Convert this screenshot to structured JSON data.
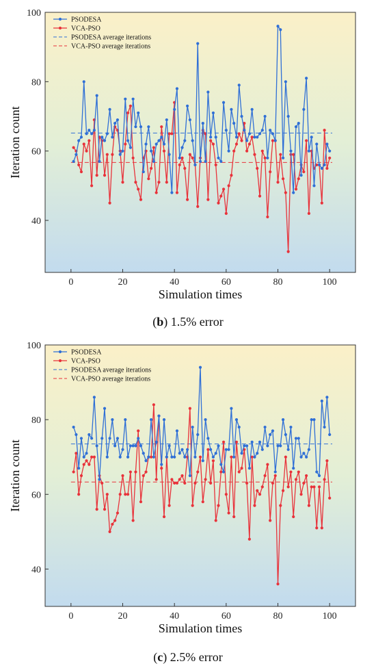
{
  "colors": {
    "psodesa": "#2f6fd6",
    "vca": "#e8323a"
  },
  "chart_data": [
    {
      "type": "line",
      "caption_letter": "b",
      "caption_text": "1.5% error",
      "xlabel": "Simulation times",
      "ylabel": "Iteration count",
      "xlim": [
        -10,
        110
      ],
      "ylim": [
        25,
        100
      ],
      "xticks": [
        0,
        20,
        40,
        60,
        80,
        100
      ],
      "yticks": [
        40,
        60,
        80,
        100
      ],
      "x_tick_labels": [
        "0",
        "20",
        "40",
        "60",
        "80",
        "100"
      ],
      "y_tick_labels": [
        "40",
        "60",
        "80",
        "100"
      ],
      "legend_position": "top-left",
      "series": [
        {
          "name": "PSODESA",
          "style": "solid-marker",
          "color": "#2f6fd6",
          "values": [
            57,
            59,
            63,
            64,
            80,
            65,
            66,
            65,
            66,
            76,
            57,
            64,
            63,
            65,
            72,
            64,
            68,
            69,
            59,
            60,
            75,
            63,
            61,
            75,
            67,
            71,
            67,
            54,
            62,
            67,
            60,
            57,
            62,
            63,
            64,
            62,
            69,
            59,
            48,
            72,
            78,
            58,
            61,
            63,
            73,
            69,
            63,
            56,
            91,
            57,
            68,
            57,
            77,
            64,
            71,
            64,
            58,
            57,
            74,
            66,
            60,
            72,
            68,
            64,
            79,
            70,
            66,
            63,
            65,
            72,
            64,
            64,
            65,
            66,
            70,
            58,
            66,
            65,
            63,
            96,
            95,
            58,
            80,
            70,
            60,
            48,
            67,
            68,
            53,
            72,
            81,
            60,
            64,
            50,
            62,
            56,
            55,
            56,
            62,
            60
          ]
        },
        {
          "name": "VCA-PSO",
          "style": "solid-marker",
          "color": "#e8323a",
          "values": [
            61,
            60,
            56,
            54,
            62,
            60,
            63,
            50,
            69,
            53,
            64,
            63,
            53,
            59,
            45,
            59,
            67,
            66,
            60,
            51,
            62,
            71,
            73,
            58,
            51,
            49,
            46,
            58,
            60,
            52,
            55,
            61,
            48,
            51,
            67,
            60,
            51,
            65,
            65,
            74,
            48,
            56,
            58,
            55,
            46,
            59,
            58,
            56,
            44,
            58,
            66,
            65,
            46,
            63,
            62,
            56,
            45,
            47,
            49,
            42,
            50,
            53,
            60,
            62,
            65,
            63,
            68,
            60,
            62,
            64,
            59,
            55,
            47,
            60,
            58,
            41,
            54,
            63,
            63,
            51,
            59,
            52,
            48,
            31,
            59,
            59,
            49,
            52,
            56,
            54,
            63,
            42,
            60,
            55,
            56,
            56,
            45,
            66,
            55,
            58
          ]
        },
        {
          "name": "PSODESA average iterations",
          "style": "dashed",
          "color": "#2f6fd6",
          "values": [
            65.2
          ]
        },
        {
          "name": "VCA-PSO average iterations",
          "style": "dashed",
          "color": "#e8323a",
          "values": [
            56.7
          ]
        }
      ]
    },
    {
      "type": "line",
      "caption_letter": "c",
      "caption_text": "2.5% error",
      "xlabel": "Simulation times",
      "ylabel": "Iteration count",
      "xlim": [
        -10,
        110
      ],
      "ylim": [
        30,
        100
      ],
      "xticks": [
        0,
        20,
        40,
        60,
        80,
        100
      ],
      "yticks": [
        40,
        60,
        80,
        100
      ],
      "x_tick_labels": [
        "0",
        "20",
        "40",
        "60",
        "80",
        "100"
      ],
      "y_tick_labels": [
        "40",
        "60",
        "80",
        "100"
      ],
      "legend_position": "top-left",
      "series": [
        {
          "name": "PSODESA",
          "style": "solid-marker",
          "color": "#2f6fd6",
          "values": [
            78,
            76,
            67,
            75,
            70,
            71,
            76,
            75,
            86,
            73,
            64,
            75,
            83,
            70,
            75,
            80,
            73,
            75,
            70,
            72,
            80,
            70,
            73,
            73,
            73,
            75,
            73,
            71,
            69,
            70,
            80,
            70,
            74,
            81,
            68,
            80,
            70,
            73,
            70,
            70,
            77,
            71,
            72,
            70,
            72,
            65,
            78,
            70,
            76,
            94,
            69,
            80,
            75,
            72,
            70,
            71,
            73,
            68,
            66,
            72,
            72,
            83,
            70,
            80,
            78,
            71,
            73,
            73,
            67,
            74,
            70,
            71,
            74,
            72,
            78,
            73,
            76,
            77,
            66,
            73,
            73,
            80,
            76,
            72,
            78,
            67,
            75,
            75,
            70,
            71,
            70,
            72,
            80,
            80,
            66,
            65,
            85,
            78,
            86,
            76
          ]
        },
        {
          "name": "VCA-PSO",
          "style": "solid-marker",
          "color": "#e8323a",
          "values": [
            66,
            71,
            60,
            65,
            68,
            69,
            68,
            70,
            70,
            56,
            65,
            63,
            56,
            60,
            50,
            52,
            53,
            55,
            60,
            65,
            60,
            60,
            66,
            53,
            66,
            77,
            58,
            65,
            66,
            70,
            70,
            84,
            64,
            81,
            67,
            54,
            70,
            57,
            64,
            63,
            63,
            64,
            65,
            63,
            70,
            83,
            57,
            63,
            66,
            70,
            58,
            64,
            72,
            63,
            69,
            53,
            57,
            66,
            74,
            60,
            55,
            70,
            54,
            74,
            66,
            67,
            72,
            63,
            48,
            70,
            57,
            61,
            60,
            62,
            65,
            68,
            53,
            63,
            65,
            36,
            57,
            61,
            70,
            62,
            66,
            54,
            64,
            66,
            60,
            63,
            65,
            57,
            62,
            62,
            51,
            62,
            51,
            64,
            69,
            59
          ]
        },
        {
          "name": "PSODESA average iterations",
          "style": "dashed",
          "color": "#2f6fd6",
          "values": [
            73.5
          ]
        },
        {
          "name": "VCA-PSO average iterations",
          "style": "dashed",
          "color": "#e8323a",
          "values": [
            63.3
          ]
        }
      ]
    }
  ]
}
